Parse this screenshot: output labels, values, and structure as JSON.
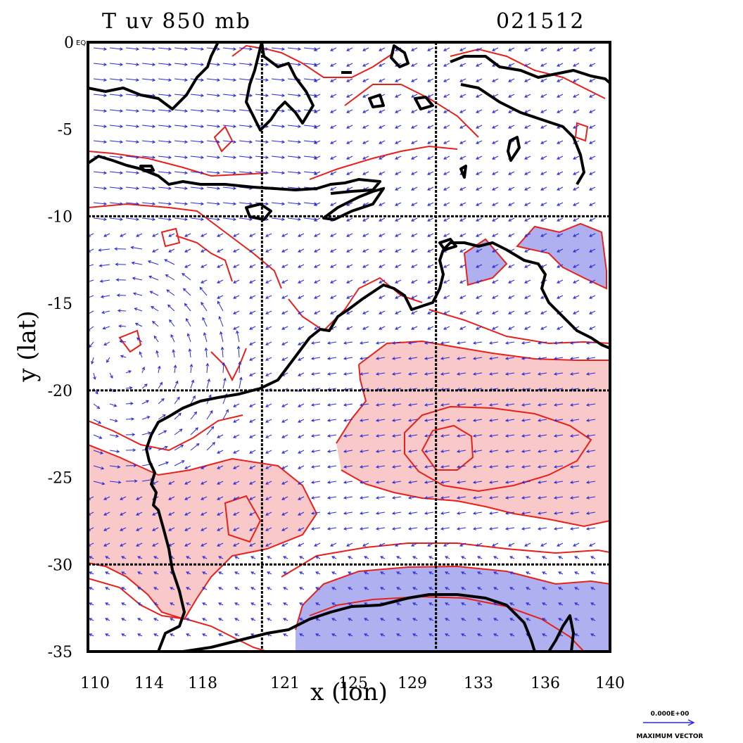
{
  "header": {
    "title": "T uv 850 mb",
    "date_code": "021512"
  },
  "axes": {
    "xlabel": "x (lon)",
    "ylabel": "y (lat)",
    "x_ticks": [
      {
        "value": 110,
        "label": "110"
      },
      {
        "value": 114,
        "label": "114"
      },
      {
        "value": 118,
        "label": "118"
      },
      {
        "value": 121,
        "label": "121"
      },
      {
        "value": 125,
        "label": "125"
      },
      {
        "value": 129,
        "label": "129"
      },
      {
        "value": 133,
        "label": "133"
      },
      {
        "value": 136,
        "label": "136"
      },
      {
        "value": 140,
        "label": "140"
      }
    ],
    "y_ticks": [
      {
        "value": 0,
        "label": "0",
        "suffix": "EQ"
      },
      {
        "value": -5,
        "label": "-5"
      },
      {
        "value": -10,
        "label": "-10"
      },
      {
        "value": -15,
        "label": "-15"
      },
      {
        "value": -20,
        "label": "-20"
      },
      {
        "value": -25,
        "label": "-25"
      },
      {
        "value": -30,
        "label": "-30"
      },
      {
        "value": -35,
        "label": "-35"
      }
    ],
    "xlim": [
      110,
      140
    ],
    "ylim": [
      -35,
      0
    ],
    "grid_lon": [
      120,
      130
    ],
    "grid_lat": [
      -10,
      -20,
      -30
    ]
  },
  "legend": {
    "vector_magnitude": "0.000E+00",
    "vector_label": "MAXIMUM VECTOR"
  },
  "colors": {
    "warm_fill": "#f9c8c8",
    "cold_fill": "#aeb0ef",
    "contour": "#e8201c",
    "vector": "#2a2ad8",
    "coast": "#000000"
  }
}
